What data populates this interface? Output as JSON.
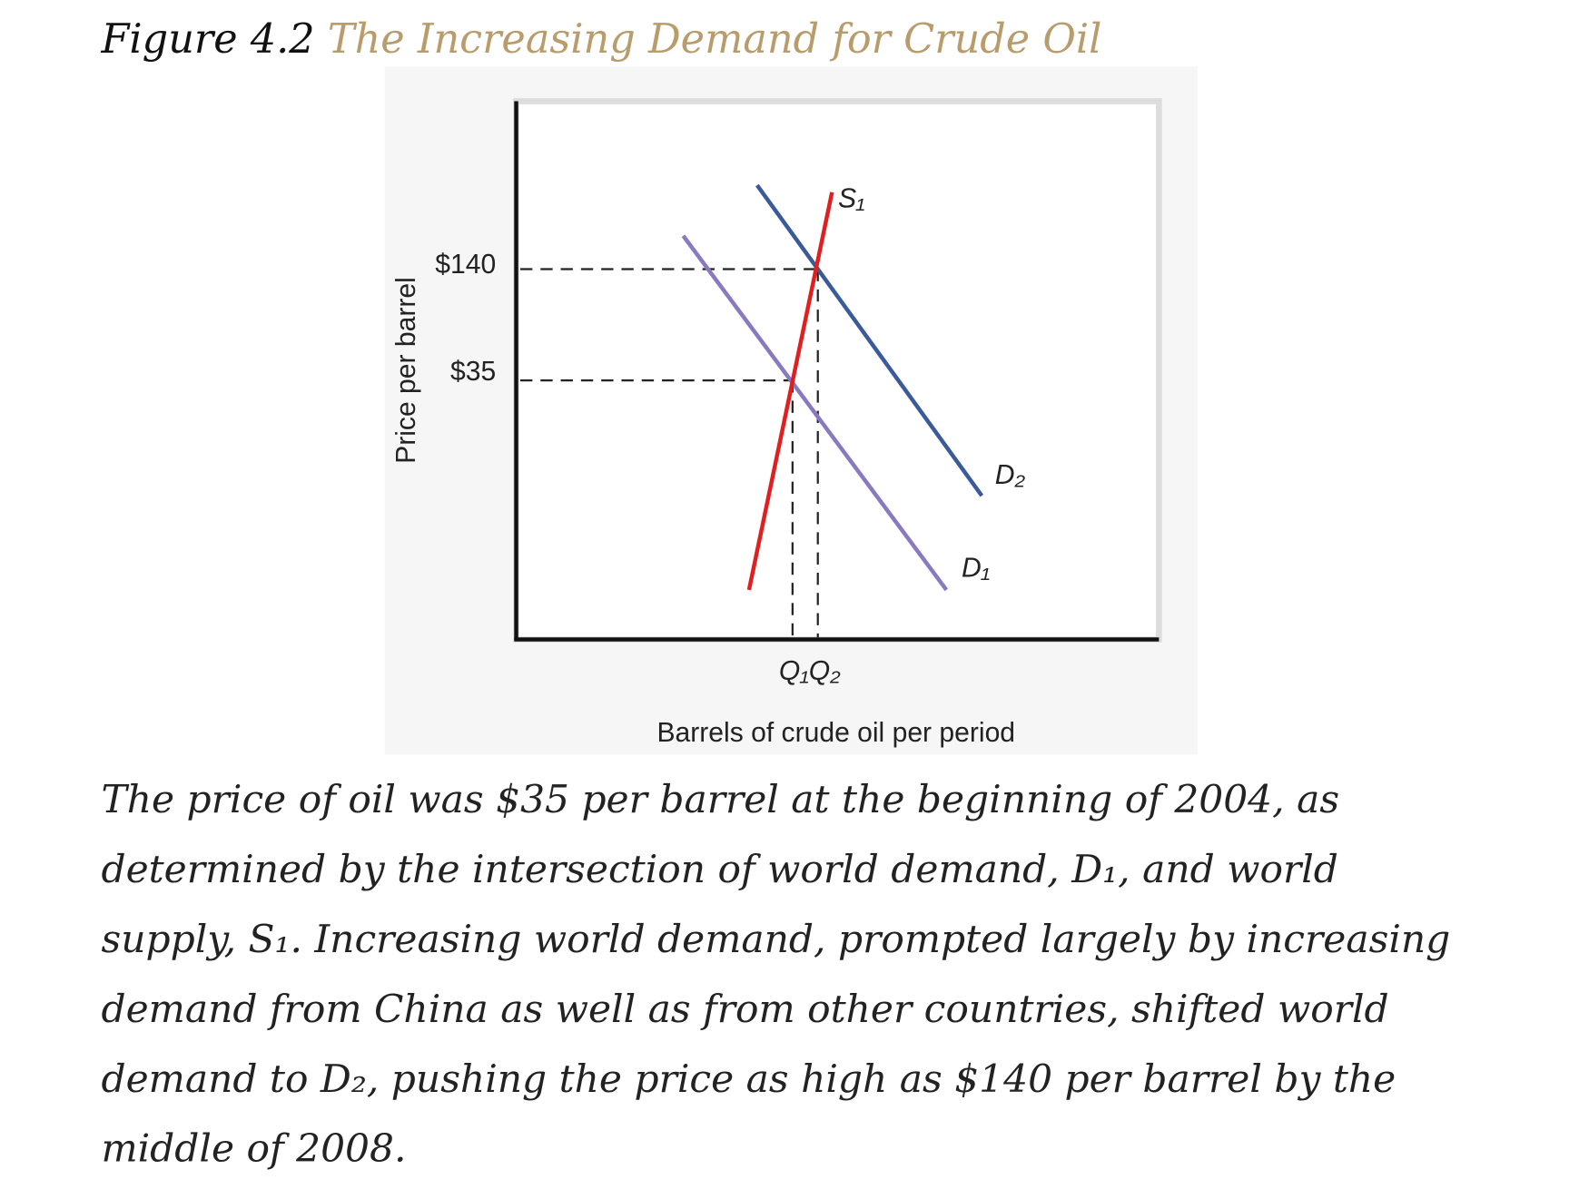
{
  "figure": {
    "label": "Figure 4.2",
    "title": "The Increasing Demand for Crude Oil"
  },
  "diagram": {
    "y_axis_label": "Price per barrel",
    "x_axis_label": "Barrels of crude oil per period",
    "price_high": "$140",
    "price_low": "$35",
    "supply_label": "S₁",
    "demand_new_label": "D₂",
    "demand_old_label": "D₁",
    "quantity_labels": "Q₁Q₂"
  },
  "caption": {
    "lines": [
      "The price of oil was $35 per barrel at the beginning of 2004, as",
      "determined by the intersection of world demand, D₁, and world",
      "supply, S₁. Increasing world demand, prompted largely by increasing",
      "demand from China as well as from other countries, shifted world",
      "demand to D₂, pushing the price as high as $140 per barrel by the",
      "middle of 2008."
    ]
  }
}
